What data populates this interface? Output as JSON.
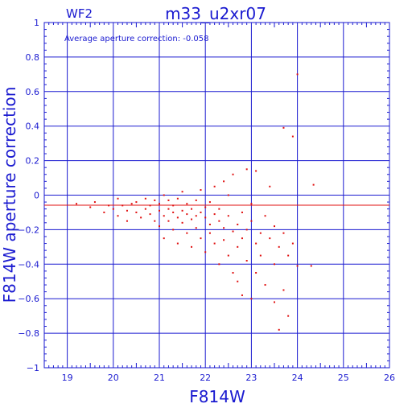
{
  "chart_data": {
    "type": "scatter",
    "title": "m33_u2xr07",
    "panel_label": "WF2",
    "annotation": "Average aperture correction: -0.058",
    "xlabel": "F814W",
    "ylabel": "F814W aperture correction",
    "xlim": [
      18.5,
      26
    ],
    "ylim": [
      -1,
      1
    ],
    "grid": true,
    "x_ticks": [
      19,
      20,
      21,
      22,
      23,
      24,
      25,
      26
    ],
    "y_ticks": [
      1,
      0.8,
      0.6,
      0.4,
      0.2,
      0,
      -0.2,
      -0.4,
      -0.6,
      -0.8,
      -1
    ],
    "x_tick_labels": [
      "19",
      "20",
      "21",
      "22",
      "23",
      "24",
      "25",
      "26"
    ],
    "y_tick_labels": [
      "1",
      "0.8",
      "0.6",
      "0.4",
      "0.2",
      "0",
      "−0.2",
      "−0.4",
      "−0.6",
      "−0.8",
      "−1"
    ],
    "reference_line": -0.058,
    "colors": {
      "axis": "#1a1ad0",
      "points": "#e01010",
      "reference_line": "#e01010"
    },
    "series": [
      {
        "values": [
          [
            19.2,
            -0.05
          ],
          [
            19.5,
            -0.07
          ],
          [
            19.6,
            -0.04
          ],
          [
            19.8,
            -0.1
          ],
          [
            19.9,
            -0.06
          ],
          [
            20.0,
            -0.08
          ],
          [
            20.1,
            -0.02
          ],
          [
            20.1,
            -0.12
          ],
          [
            20.2,
            -0.06
          ],
          [
            20.3,
            -0.09
          ],
          [
            20.3,
            -0.15
          ],
          [
            20.4,
            -0.05
          ],
          [
            20.5,
            -0.1
          ],
          [
            20.5,
            -0.04
          ],
          [
            20.6,
            -0.13
          ],
          [
            20.7,
            -0.08
          ],
          [
            20.7,
            -0.02
          ],
          [
            20.8,
            -0.11
          ],
          [
            20.8,
            -0.06
          ],
          [
            20.9,
            -0.15
          ],
          [
            20.9,
            -0.03
          ],
          [
            21.0,
            -0.09
          ],
          [
            21.0,
            -0.18
          ],
          [
            21.0,
            -0.05
          ],
          [
            21.1,
            -0.12
          ],
          [
            21.1,
            0.0
          ],
          [
            21.1,
            -0.25
          ],
          [
            21.2,
            -0.08
          ],
          [
            21.2,
            -0.15
          ],
          [
            21.2,
            -0.03
          ],
          [
            21.3,
            -0.1
          ],
          [
            21.3,
            -0.2
          ],
          [
            21.3,
            -0.06
          ],
          [
            21.4,
            -0.13
          ],
          [
            21.4,
            -0.02
          ],
          [
            21.4,
            -0.28
          ],
          [
            21.5,
            -0.09
          ],
          [
            21.5,
            -0.16
          ],
          [
            21.5,
            0.02
          ],
          [
            21.6,
            -0.11
          ],
          [
            21.6,
            -0.22
          ],
          [
            21.6,
            -0.05
          ],
          [
            21.7,
            -0.14
          ],
          [
            21.7,
            -0.08
          ],
          [
            21.7,
            -0.3
          ],
          [
            21.8,
            -0.12
          ],
          [
            21.8,
            -0.03
          ],
          [
            21.8,
            -0.19
          ],
          [
            21.9,
            -0.1
          ],
          [
            21.9,
            -0.25
          ],
          [
            21.9,
            0.03
          ],
          [
            22.0,
            -0.13
          ],
          [
            22.0,
            -0.07
          ],
          [
            22.0,
            -0.33
          ],
          [
            22.1,
            -0.17
          ],
          [
            22.1,
            -0.04
          ],
          [
            22.1,
            -0.22
          ],
          [
            22.2,
            -0.11
          ],
          [
            22.2,
            0.05
          ],
          [
            22.2,
            -0.28
          ],
          [
            22.3,
            -0.15
          ],
          [
            22.3,
            -0.08
          ],
          [
            22.3,
            -0.4
          ],
          [
            22.4,
            -0.19
          ],
          [
            22.4,
            0.08
          ],
          [
            22.4,
            -0.26
          ],
          [
            22.5,
            -0.12
          ],
          [
            22.5,
            -0.35
          ],
          [
            22.5,
            0.0
          ],
          [
            22.6,
            -0.21
          ],
          [
            22.6,
            -0.45
          ],
          [
            22.6,
            0.12
          ],
          [
            22.7,
            -0.17
          ],
          [
            22.7,
            -0.3
          ],
          [
            22.7,
            -0.5
          ],
          [
            22.8,
            -0.1
          ],
          [
            22.8,
            -0.25
          ],
          [
            22.8,
            -0.58
          ],
          [
            22.9,
            -0.2
          ],
          [
            22.9,
            0.15
          ],
          [
            22.9,
            -0.38
          ],
          [
            23.0,
            -0.15
          ],
          [
            23.0,
            -0.6
          ],
          [
            23.0,
            -0.05
          ],
          [
            23.1,
            -0.28
          ],
          [
            23.1,
            0.14
          ],
          [
            23.1,
            -0.45
          ],
          [
            23.2,
            -0.22
          ],
          [
            23.2,
            -0.35
          ],
          [
            23.3,
            -0.12
          ],
          [
            23.3,
            -0.52
          ],
          [
            23.4,
            -0.25
          ],
          [
            23.4,
            0.05
          ],
          [
            23.5,
            -0.18
          ],
          [
            23.5,
            -0.4
          ],
          [
            23.5,
            -0.62
          ],
          [
            23.6,
            -0.3
          ],
          [
            23.6,
            -0.78
          ],
          [
            23.7,
            -0.22
          ],
          [
            23.7,
            -0.55
          ],
          [
            23.8,
            -0.35
          ],
          [
            23.8,
            -0.7
          ],
          [
            23.9,
            -0.28
          ],
          [
            23.9,
            0.34
          ],
          [
            23.7,
            0.39
          ],
          [
            24.0,
            0.7
          ],
          [
            24.0,
            -0.41
          ],
          [
            24.3,
            -0.41
          ],
          [
            24.35,
            0.06
          ]
        ]
      }
    ]
  }
}
